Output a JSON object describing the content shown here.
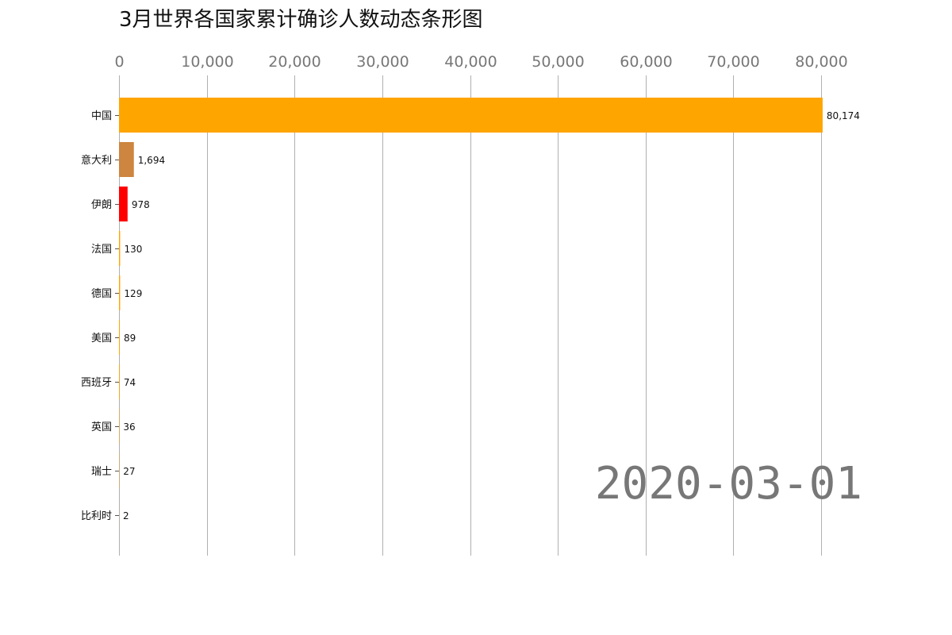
{
  "chart_data": {
    "type": "bar",
    "orientation": "horizontal",
    "title": "3月世界各国家累计确诊人数动态条形图",
    "date": "2020-03-01",
    "xlim": [
      0,
      80000
    ],
    "grid": true,
    "x_ticks": [
      0,
      10000,
      20000,
      30000,
      40000,
      50000,
      60000,
      70000,
      80000
    ],
    "x_tick_labels": [
      "0",
      "10,000",
      "20,000",
      "30,000",
      "40,000",
      "50,000",
      "60,000",
      "70,000",
      "80,000"
    ],
    "categories": [
      "中国",
      "意大利",
      "伊朗",
      "法国",
      "德国",
      "美国",
      "西班牙",
      "英国",
      "瑞士",
      "比利时"
    ],
    "values": [
      80174,
      1694,
      978,
      130,
      129,
      89,
      74,
      36,
      27,
      2
    ],
    "value_labels": [
      "80,174",
      "1,694",
      "978",
      "130",
      "129",
      "89",
      "74",
      "36",
      "27",
      "2"
    ],
    "colors": [
      "#ffa500",
      "#cd853f",
      "#ff0000",
      "#ffa500",
      "#ffa500",
      "#ffa500",
      "#ffa500",
      "#ffa500",
      "#ffa500",
      "#ffa500"
    ]
  }
}
